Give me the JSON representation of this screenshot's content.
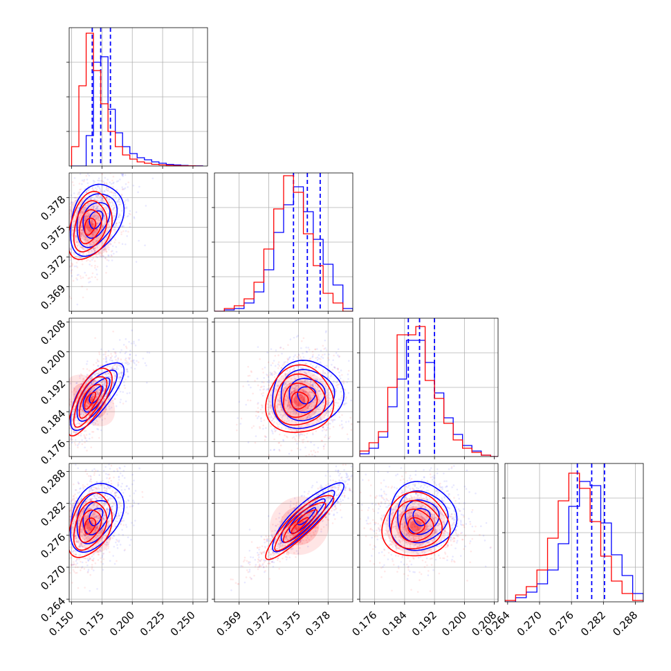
{
  "chart_data": {
    "type": "corner",
    "description_free": true,
    "grid": true,
    "colors": {
      "series_a": "#0000ff",
      "series_b": "#ff0000"
    },
    "series": [
      {
        "color": "#0000ff",
        "quantiles_dashed": [
          [
            0.167,
            0.174,
            0.182
          ],
          [
            0.3745,
            0.3759,
            0.3772
          ],
          [
            0.185,
            0.188,
            0.192
          ],
          [
            0.2771,
            0.2798,
            0.2822
          ]
        ],
        "means": [
          0.17,
          0.3758,
          0.1885,
          0.2795
        ],
        "sigmas": [
          0.011,
          0.0018,
          0.0045,
          0.0032
        ],
        "hist": [
          {
            "edges": [
              0.15,
              0.156,
              0.162,
              0.168,
              0.174,
              0.18,
              0.186,
              0.192,
              0.198,
              0.204,
              0.21,
              0.216,
              0.222,
              0.228,
              0.234,
              0.24,
              0.246,
              0.252,
              0.258
            ],
            "counts": [
              0.0,
              0.0,
              0.22,
              0.75,
              0.79,
              0.41,
              0.24,
              0.14,
              0.09,
              0.06,
              0.045,
              0.03,
              0.02,
              0.012,
              0.008,
              0.004,
              0.002,
              0.001
            ]
          },
          {
            "edges": [
              0.3665,
              0.3675,
              0.3685,
              0.3695,
              0.3705,
              0.3715,
              0.3725,
              0.3735,
              0.3745,
              0.3755,
              0.3765,
              0.3775,
              0.3785,
              0.3795,
              0.3805
            ],
            "counts": [
              0.0,
              0.01,
              0.02,
              0.06,
              0.14,
              0.3,
              0.57,
              0.77,
              0.9,
              0.72,
              0.52,
              0.34,
              0.19,
              0.02
            ]
          },
          {
            "edges": [
              0.172,
              0.1745,
              0.177,
              0.1795,
              0.182,
              0.1845,
              0.187,
              0.1895,
              0.192,
              0.1945,
              0.197,
              0.1995,
              0.202,
              0.2045,
              0.207,
              0.2095
            ],
            "counts": [
              0.02,
              0.06,
              0.14,
              0.36,
              0.56,
              0.84,
              0.84,
              0.68,
              0.46,
              0.28,
              0.16,
              0.08,
              0.04,
              0.01,
              0.0
            ]
          },
          {
            "edges": [
              0.2635,
              0.2655,
              0.2675,
              0.2695,
              0.2715,
              0.2735,
              0.2755,
              0.2775,
              0.2795,
              0.2815,
              0.2835,
              0.2855,
              0.2875,
              0.2895
            ],
            "counts": [
              0.0,
              0.03,
              0.07,
              0.13,
              0.23,
              0.42,
              0.69,
              0.87,
              0.84,
              0.57,
              0.34,
              0.19,
              0.06
            ]
          }
        ]
      },
      {
        "color": "#ff0000",
        "quantiles_dashed": [],
        "means": [
          0.165,
          0.3751,
          0.187,
          0.2778
        ],
        "sigmas": [
          0.009,
          0.0017,
          0.0045,
          0.003
        ],
        "hist": [
          {
            "edges": [
              0.15,
              0.156,
              0.162,
              0.168,
              0.174,
              0.18,
              0.186,
              0.192,
              0.198,
              0.204,
              0.21,
              0.216,
              0.222,
              0.228,
              0.234,
              0.24,
              0.246,
              0.252,
              0.258
            ],
            "counts": [
              0.14,
              0.58,
              0.96,
              0.69,
              0.45,
              0.25,
              0.14,
              0.08,
              0.05,
              0.03,
              0.02,
              0.012,
              0.008,
              0.005,
              0.003,
              0.002,
              0.001,
              0.0
            ]
          },
          {
            "edges": [
              0.3665,
              0.3675,
              0.3685,
              0.3695,
              0.3705,
              0.3715,
              0.3725,
              0.3735,
              0.3745,
              0.3755,
              0.3765,
              0.3775,
              0.3785,
              0.3795,
              0.3805
            ],
            "counts": [
              0.0,
              0.02,
              0.04,
              0.09,
              0.21,
              0.45,
              0.74,
              0.98,
              0.86,
              0.56,
              0.33,
              0.13,
              0.06,
              0.0
            ]
          },
          {
            "edges": [
              0.172,
              0.1745,
              0.177,
              0.1795,
              0.182,
              0.1845,
              0.187,
              0.1895,
              0.192,
              0.1945,
              0.197,
              0.1995,
              0.202,
              0.2045,
              0.207,
              0.2095
            ],
            "counts": [
              0.04,
              0.1,
              0.18,
              0.5,
              0.88,
              0.88,
              0.94,
              0.55,
              0.42,
              0.24,
              0.12,
              0.06,
              0.03,
              0.01,
              0.0
            ]
          },
          {
            "edges": [
              0.2635,
              0.2655,
              0.2675,
              0.2695,
              0.2715,
              0.2735,
              0.2755,
              0.2775,
              0.2795,
              0.2815,
              0.2835,
              0.2855,
              0.2875,
              0.2895
            ],
            "counts": [
              0.01,
              0.05,
              0.11,
              0.23,
              0.46,
              0.73,
              0.93,
              0.82,
              0.58,
              0.33,
              0.15,
              0.06,
              0.01
            ]
          }
        ]
      }
    ],
    "correlations": {
      "0_1": 0.3,
      "0_2": 0.72,
      "1_2": 0.05,
      "0_3": 0.35,
      "1_3": 0.88,
      "2_3": 0.0
    },
    "parameters": [
      {
        "range": [
          0.148,
          0.262
        ],
        "ticks": [
          0.15,
          0.175,
          0.2,
          0.225,
          0.25
        ],
        "tick_labels": [
          "0.150",
          "0.175",
          "0.200",
          "0.225",
          "0.250"
        ]
      },
      {
        "range": [
          0.3665,
          0.3805
        ],
        "ticks": [
          0.369,
          0.372,
          0.375,
          0.378
        ],
        "tick_labels": [
          "0.369",
          "0.372",
          "0.375",
          "0.378"
        ]
      },
      {
        "range": [
          0.172,
          0.209
        ],
        "ticks": [
          0.176,
          0.184,
          0.192,
          0.2,
          0.208
        ],
        "tick_labels": [
          "0.176",
          "0.184",
          "0.192",
          "0.200",
          "0.208"
        ]
      },
      {
        "range": [
          0.2635,
          0.2895
        ],
        "ticks": [
          0.264,
          0.27,
          0.276,
          0.282,
          0.288
        ],
        "tick_labels": [
          "0.264",
          "0.270",
          "0.276",
          "0.282",
          "0.288"
        ]
      }
    ]
  }
}
